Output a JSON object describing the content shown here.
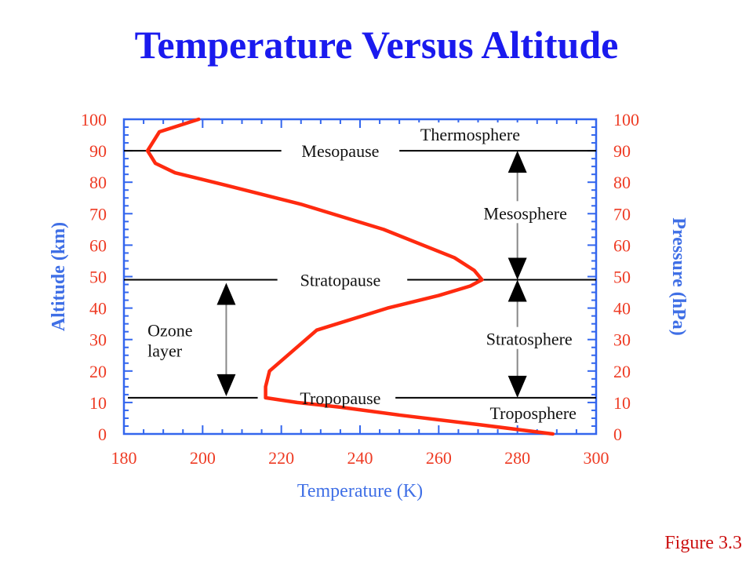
{
  "slide": {
    "title": "Temperature Versus Altitude",
    "figure_label": "Figure 3.3"
  },
  "colors": {
    "title": "#1a1aee",
    "tick_labels": "#ee3b24",
    "axis_titles": "#3f6fe6",
    "frame": "#3366ee",
    "profile": "#ff2a0f",
    "lines": "#000000",
    "figure_label": "#cc1111"
  },
  "chart_data": {
    "type": "line",
    "title": "",
    "xlabel": "Temperature (K)",
    "ylabel": "Altitude (km)",
    "y2label": "Pressure (hPa)",
    "xlim": [
      180,
      300
    ],
    "ylim": [
      0,
      100
    ],
    "xticks": [
      180,
      200,
      220,
      240,
      260,
      280,
      300
    ],
    "yticks": [
      0,
      10,
      20,
      30,
      40,
      50,
      60,
      70,
      80,
      90,
      100
    ],
    "y2ticks": [
      0,
      10,
      20,
      30,
      40,
      50,
      60,
      70,
      80,
      90,
      100
    ],
    "grid": false,
    "series": [
      {
        "x": [
          289,
          270,
          250,
          235,
          224,
          216,
          216,
          217,
          229,
          247,
          260,
          268,
          271,
          269,
          264,
          246,
          225,
          206,
          193,
          188,
          186,
          189,
          199
        ],
        "y": [
          0,
          3,
          6,
          8.5,
          10,
          11.5,
          15,
          20,
          33,
          40,
          44,
          47,
          49,
          52,
          56,
          65,
          73,
          79,
          83,
          86,
          90,
          96,
          100
        ]
      }
    ],
    "boundaries": [
      {
        "name": "Mesopause",
        "altitude": 90
      },
      {
        "name": "Stratopause",
        "altitude": 49
      },
      {
        "name": "Tropopause",
        "altitude": 11.5
      }
    ],
    "layers": [
      {
        "name": "Thermosphere",
        "x": 268,
        "y": 95
      },
      {
        "name": "Mesosphere",
        "x": 282,
        "y": 70
      },
      {
        "name": "Stratosphere",
        "x": 283,
        "y": 30
      },
      {
        "name": "Troposphere",
        "x": 284,
        "y": 6.5
      }
    ],
    "ozone": {
      "label_lines": [
        "Ozone",
        "layer"
      ],
      "top": 48,
      "bottom": 12
    }
  }
}
